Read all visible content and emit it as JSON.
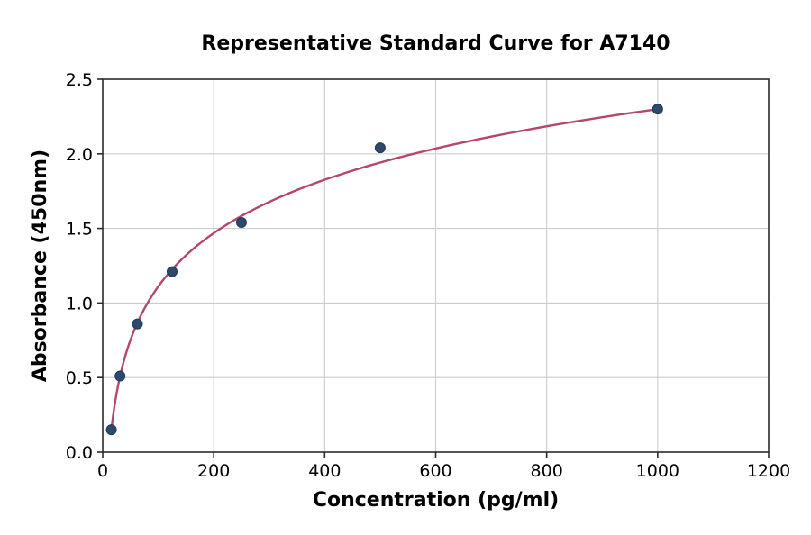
{
  "chart_data": {
    "type": "scatter",
    "title": "Representative Standard Curve for A7140",
    "xlabel": "Concentration (pg/ml)",
    "ylabel": "Absorbance (450nm)",
    "xlim": [
      0,
      1200
    ],
    "ylim": [
      0,
      2.5
    ],
    "x_ticks": [
      0,
      200,
      400,
      600,
      800,
      1000,
      1200
    ],
    "x_tick_labels": [
      "0",
      "200",
      "400",
      "600",
      "800",
      "1000",
      "1200"
    ],
    "y_ticks": [
      0,
      0.5,
      1.0,
      1.5,
      2.0,
      2.5
    ],
    "y_tick_labels": [
      "0.0",
      "0.5",
      "1.0",
      "1.5",
      "2.0",
      "2.5"
    ],
    "grid": true,
    "legend": "none",
    "points": {
      "x": [
        15.6,
        31.2,
        62.5,
        125,
        250,
        500,
        1000
      ],
      "y": [
        0.15,
        0.51,
        0.86,
        1.21,
        1.54,
        2.04,
        2.3
      ]
    },
    "fit_curve": {
      "type": "logarithmic",
      "x0": 15.6,
      "y_at_x0": 0.15,
      "slope_per_ln": 0.5167,
      "x_range": [
        15.6,
        1000
      ]
    },
    "colors": {
      "curve": "#b4476b",
      "points": "#2d4a6b",
      "point_edge": "#1e3a57",
      "grid": "#cccccc",
      "spine": "#2b2b2b",
      "text": "#000000"
    }
  }
}
